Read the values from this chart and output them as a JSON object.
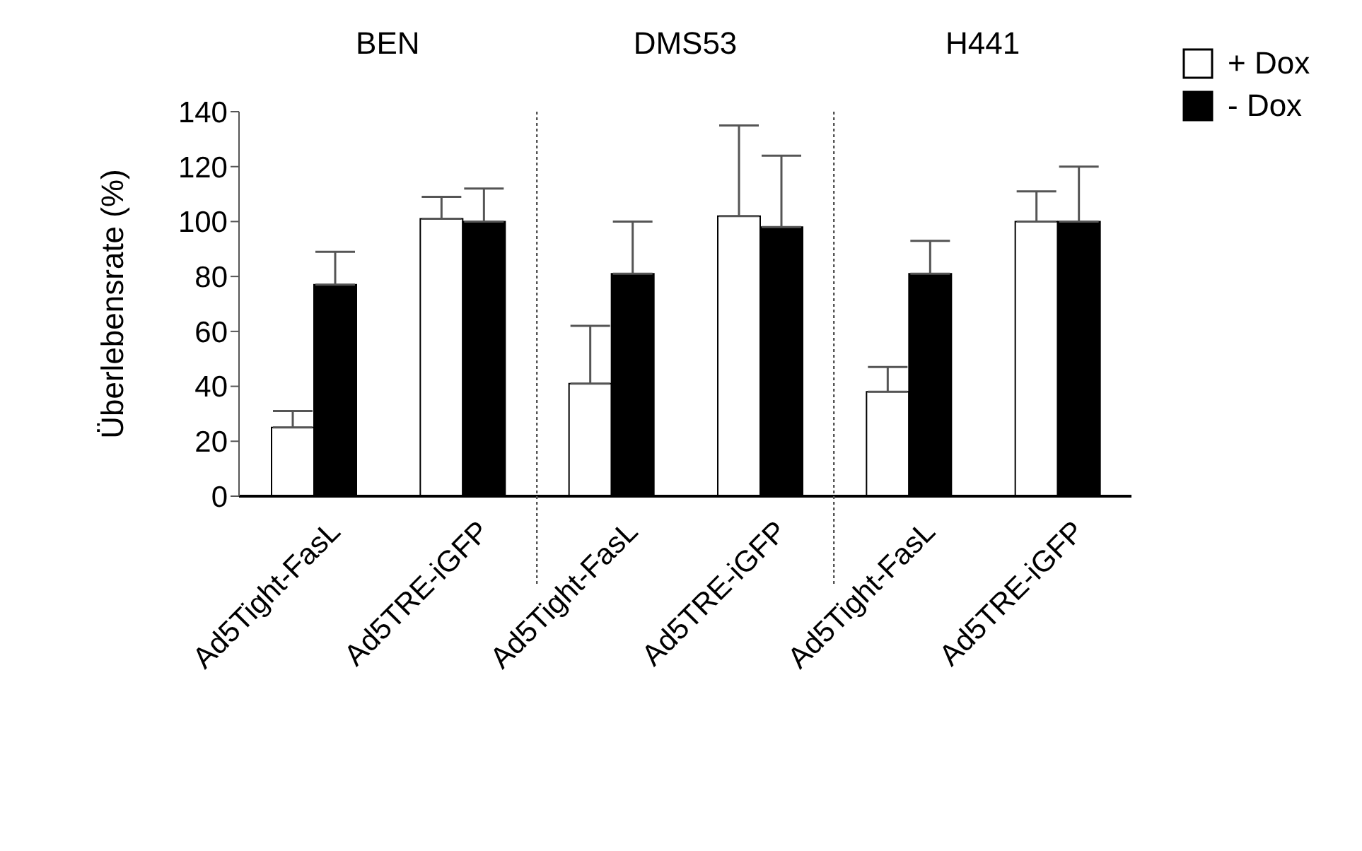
{
  "chart_data": {
    "type": "bar",
    "categories": [
      "Ad5Tight-FasL",
      "Ad5TRE-iGFP",
      "Ad5Tight-FasL",
      "Ad5TRE-iGFP",
      "Ad5Tight-FasL",
      "Ad5TRE-iGFP"
    ],
    "series": [
      {
        "name": "+ Dox",
        "color": "#ffffff",
        "values": [
          25,
          101,
          41,
          102,
          38,
          100
        ],
        "errors": [
          [
            25,
            31
          ],
          [
            101,
            109
          ],
          [
            41,
            62
          ],
          [
            102,
            135
          ],
          [
            38,
            47
          ],
          [
            100,
            111
          ]
        ]
      },
      {
        "name": "- Dox",
        "color": "#000000",
        "values": [
          77,
          100,
          81,
          98,
          81,
          100
        ],
        "errors": [
          [
            77,
            89
          ],
          [
            100,
            112
          ],
          [
            81,
            100
          ],
          [
            98,
            124
          ],
          [
            81,
            93
          ],
          [
            100,
            120
          ]
        ]
      }
    ],
    "ylabel": "Überlebensrate (%)",
    "ylim": [
      0,
      140
    ],
    "yticks": [
      0,
      20,
      40,
      60,
      80,
      100,
      120,
      140
    ],
    "annotations": [
      "BEN",
      "DMS53",
      "H441"
    ],
    "legend": "top right",
    "grid": false
  }
}
